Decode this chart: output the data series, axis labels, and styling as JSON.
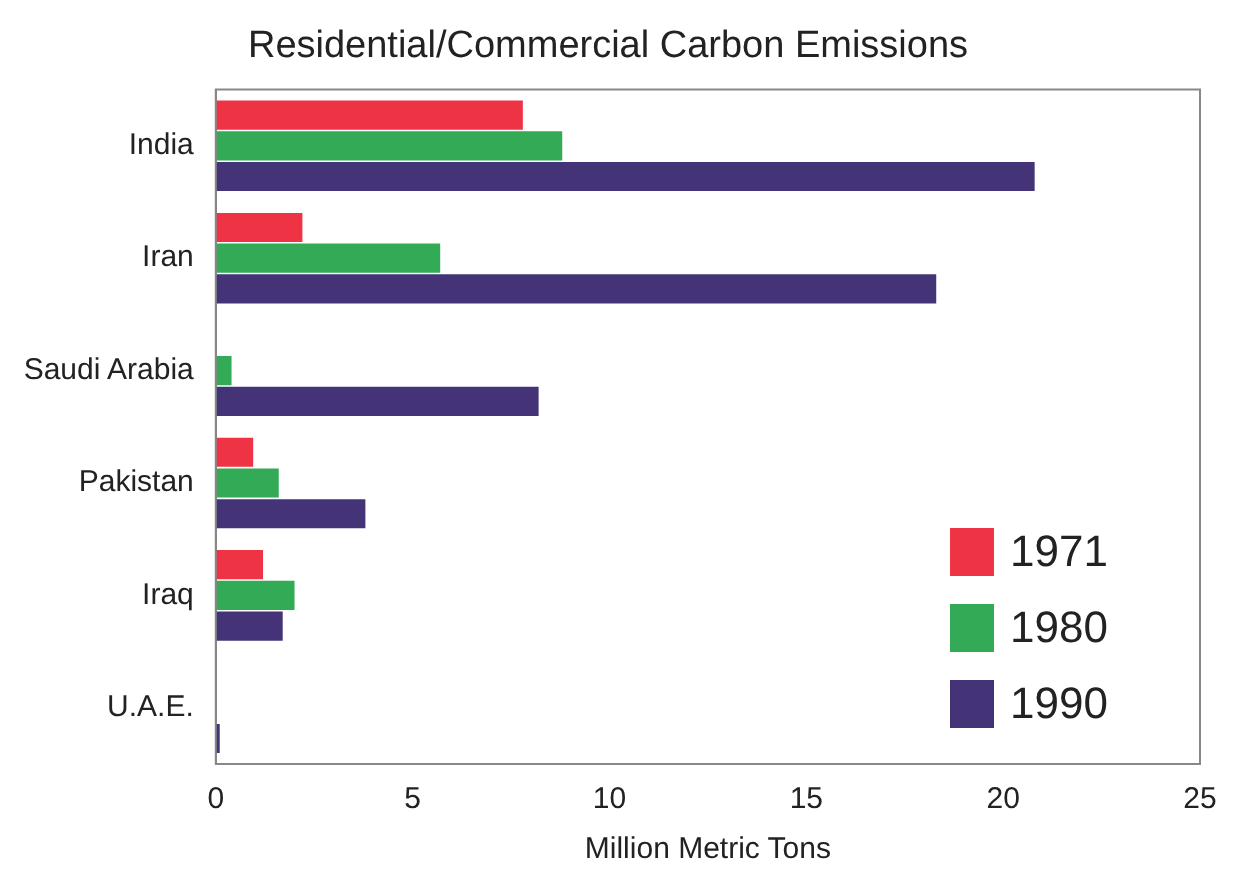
{
  "chart_data": {
    "type": "bar",
    "orientation": "horizontal",
    "title": "Residential/Commercial Carbon Emissions",
    "xlabel": "Million Metric Tons",
    "categories": [
      "India",
      "Iran",
      "Saudi Arabia",
      "Pakistan",
      "Iraq",
      "U.A.E."
    ],
    "series": [
      {
        "name": "1971",
        "color": "#ee3344",
        "values": [
          7.8,
          2.2,
          0,
          0.95,
          1.2,
          0
        ]
      },
      {
        "name": "1980",
        "color": "#33aa55",
        "values": [
          8.8,
          5.7,
          0.4,
          1.6,
          2.0,
          0
        ]
      },
      {
        "name": "1990",
        "color": "#443377",
        "values": [
          20.8,
          18.3,
          8.2,
          3.8,
          1.7,
          0.1
        ]
      }
    ],
    "xlim": [
      0,
      25
    ],
    "xticks": [
      0,
      5,
      10,
      15,
      20,
      25
    ],
    "grid": false,
    "legend": "bottom right"
  }
}
